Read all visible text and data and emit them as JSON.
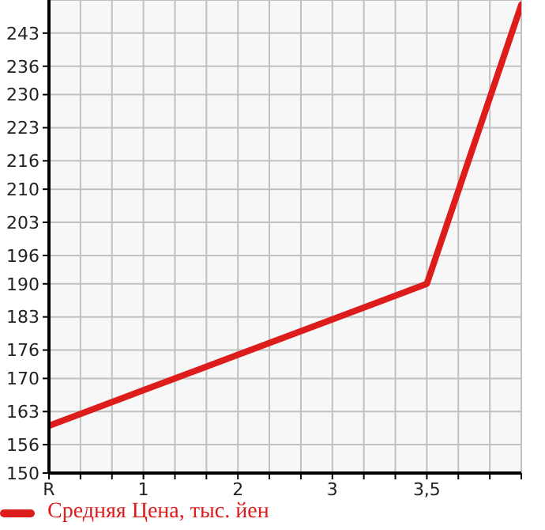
{
  "chart_data": {
    "type": "line",
    "categories": [
      "R",
      "1",
      "2",
      "3",
      "3,5",
      null
    ],
    "series": [
      {
        "name": "Средняя Цена, тыс. йен",
        "color": "#dd1c1c",
        "values": [
          160,
          167.5,
          175,
          182.5,
          190,
          249
        ]
      }
    ],
    "ylim": [
      150,
      250
    ],
    "yticks": [
      150,
      156,
      163,
      170,
      176,
      183,
      190,
      196,
      203,
      210,
      216,
      223,
      230,
      236,
      243
    ],
    "grid": true,
    "legend": "bottom left",
    "marker": "none",
    "line_style": "solid"
  }
}
